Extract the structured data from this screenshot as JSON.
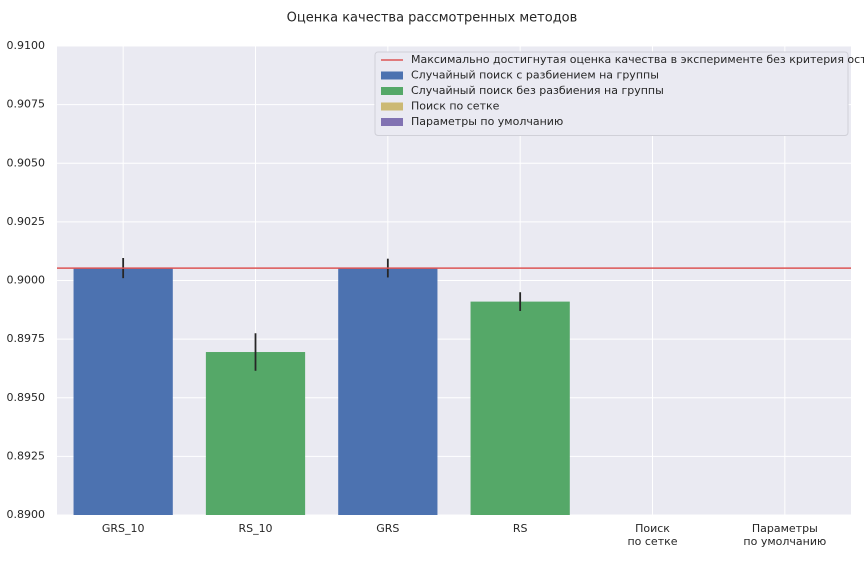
{
  "chart_data": {
    "type": "bar",
    "title": "Оценка качества рассмотренных методов",
    "categories": [
      "GRS_10",
      "RS_10",
      "GRS",
      "RS",
      "Поиск\nпо сетке",
      "Параметры\nпо умолчанию"
    ],
    "series": [
      {
        "name": "Случайный поиск с разбиением на группы",
        "color": "#4c72b0",
        "values": [
          0.90053,
          null,
          0.90053,
          null,
          null,
          null
        ],
        "errors": [
          0.00043,
          null,
          0.0004,
          null,
          null,
          null
        ]
      },
      {
        "name": "Случайный поиск без разбиения на группы",
        "color": "#55a868",
        "values": [
          null,
          0.89695,
          null,
          0.8991,
          null,
          null
        ],
        "errors": [
          null,
          0.0008,
          null,
          0.0004,
          null,
          null
        ]
      },
      {
        "name": "Поиск по сетке",
        "color": "#ccb974",
        "values": [
          null,
          null,
          null,
          null,
          null,
          null
        ]
      },
      {
        "name": "Параметры по умолчанию",
        "color": "#8172b2",
        "values": [
          null,
          null,
          null,
          null,
          null,
          null
        ]
      }
    ],
    "reference_line": {
      "name": "Максимально достигнутая оценка качества в эксперименте без критерия остановки",
      "color": "#dd5555",
      "value": 0.90053
    },
    "ylim": [
      0.89,
      0.91
    ],
    "yticks": [
      {
        "value": 0.89,
        "label": "0.8900"
      },
      {
        "value": 0.8925,
        "label": "0.8925"
      },
      {
        "value": 0.895,
        "label": "0.8950"
      },
      {
        "value": 0.8975,
        "label": "0.8975"
      },
      {
        "value": 0.9,
        "label": "0.9000"
      },
      {
        "value": 0.9025,
        "label": "0.9025"
      },
      {
        "value": 0.905,
        "label": "0.9050"
      },
      {
        "value": 0.9075,
        "label": "0.9075"
      },
      {
        "value": 0.91,
        "label": "0.9100"
      }
    ],
    "grid": true,
    "legend": "upper right"
  }
}
